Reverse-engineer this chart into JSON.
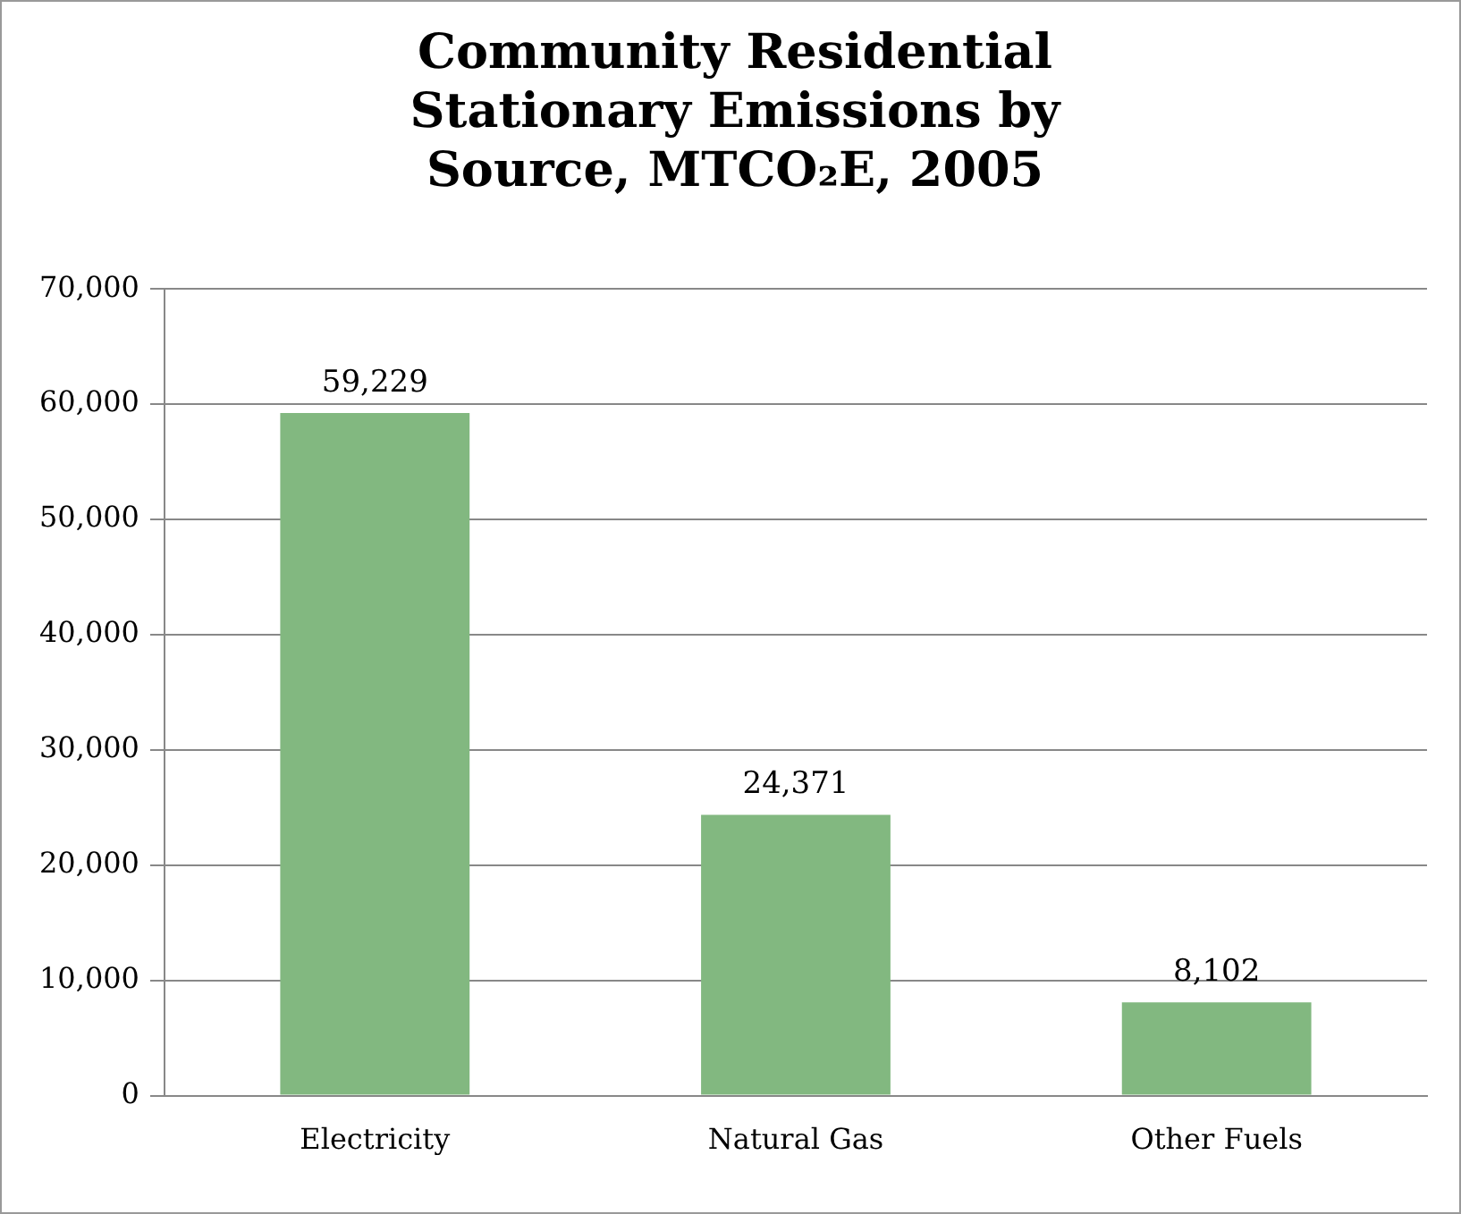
{
  "chart_data": {
    "type": "bar",
    "title": "Community Residential Stationary Emissions by Source, MTCO₂E, 2005",
    "categories": [
      "Electricity",
      "Natural Gas",
      "Other Fuels"
    ],
    "values": [
      59229,
      24371,
      8102
    ],
    "color": "#82b880",
    "ylim": [
      0,
      70000
    ],
    "yticks": [
      {
        "value": 0,
        "label": "0"
      },
      {
        "value": 10000,
        "label": "10,000"
      },
      {
        "value": 20000,
        "label": "20,000"
      },
      {
        "value": 30000,
        "label": "30,000"
      },
      {
        "value": 40000,
        "label": "40,000"
      },
      {
        "value": 50000,
        "label": "50,000"
      },
      {
        "value": 60000,
        "label": "60,000"
      },
      {
        "value": 70000,
        "label": "70,000"
      }
    ],
    "value_labels": [
      "59,229",
      "24,371",
      "8,102"
    ],
    "grid": "y",
    "legend": false
  }
}
